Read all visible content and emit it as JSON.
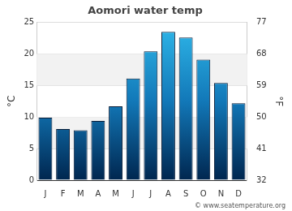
{
  "chart_data": {
    "type": "bar",
    "title": "Aomori water temp",
    "categories": [
      "J",
      "F",
      "M",
      "A",
      "M",
      "J",
      "J",
      "A",
      "S",
      "O",
      "N",
      "D"
    ],
    "values": [
      9.9,
      8.1,
      7.9,
      9.4,
      11.7,
      16.1,
      20.4,
      23.5,
      22.6,
      19.1,
      15.4,
      12.2
    ],
    "color": "#2fb8ea",
    "ylim": [
      0,
      25
    ],
    "yticks": [
      0,
      5,
      10,
      15,
      20,
      25
    ],
    "y2lim": [
      32,
      77
    ],
    "y2ticks": [
      32,
      41,
      50,
      59,
      68,
      77
    ],
    "y_label": "°C",
    "y2_label": "°F",
    "annotations": [
      "© www.seatemperature.org"
    ],
    "grid": true
  }
}
